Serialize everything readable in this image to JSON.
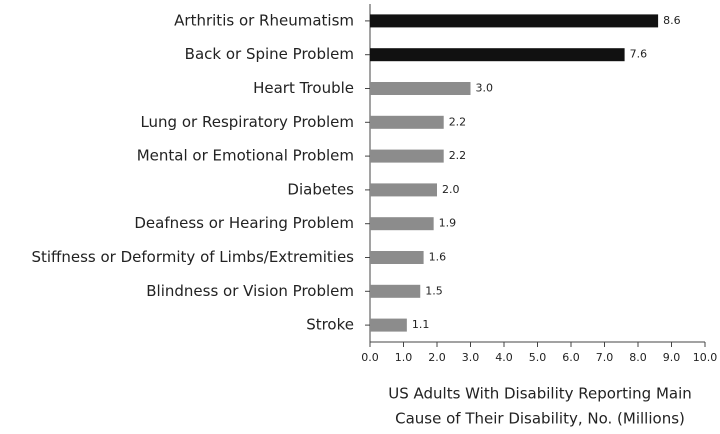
{
  "chart_data": {
    "type": "barh",
    "categories": [
      "Arthritis or Rheumatism",
      "Back or Spine Problem",
      "Heart Trouble",
      "Lung or Respiratory Problem",
      "Mental or Emotional Problem",
      "Diabetes",
      "Deafness or Hearing Problem",
      "Stiffness or Deformity of Limbs/Extremities",
      "Blindness or Vision Problem",
      "Stroke"
    ],
    "values": [
      8.6,
      7.6,
      3.0,
      2.2,
      2.2,
      2.0,
      1.9,
      1.6,
      1.5,
      1.1
    ],
    "value_labels": [
      "8.6",
      "7.6",
      "3.0",
      "2.2",
      "2.2",
      "2.0",
      "1.9",
      "1.6",
      "1.5",
      "1.1"
    ],
    "colors": [
      "#111111",
      "#111111",
      "#8c8c8c",
      "#8c8c8c",
      "#8c8c8c",
      "#8c8c8c",
      "#8c8c8c",
      "#8c8c8c",
      "#8c8c8c",
      "#8c8c8c"
    ],
    "xlim": [
      0,
      10
    ],
    "xticks": [
      {
        "value": 0,
        "label": "0.0"
      },
      {
        "value": 1,
        "label": "1.0"
      },
      {
        "value": 2,
        "label": "2.0"
      },
      {
        "value": 3,
        "label": "3.0"
      },
      {
        "value": 4,
        "label": "4.0"
      },
      {
        "value": 5,
        "label": "5.0"
      },
      {
        "value": 6,
        "label": "6.0"
      },
      {
        "value": 7,
        "label": "7.0"
      },
      {
        "value": 8,
        "label": "8.0"
      },
      {
        "value": 9,
        "label": "9.0"
      },
      {
        "value": 10,
        "label": "10.0"
      }
    ],
    "xlabel": [
      "US Adults With Disability Reporting Main",
      "Cause of Their Disability, No. (Millions)"
    ]
  }
}
